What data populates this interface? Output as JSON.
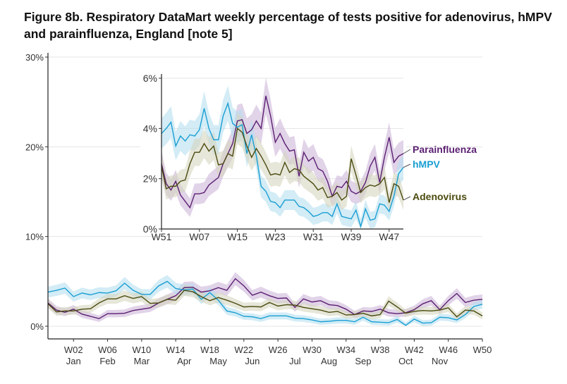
{
  "chart_data": {
    "type": "line",
    "title": "Figure 8b. Respiratory DataMart weekly percentage of tests positive for adenovirus, hMPV and parainfluenza, England [note 5]",
    "xlabel": "",
    "ylabel": "",
    "weeks": [
      "W51",
      "W52",
      "W01",
      "W02",
      "W03",
      "W04",
      "W05",
      "W06",
      "W07",
      "W08",
      "W09",
      "W10",
      "W11",
      "W12",
      "W13",
      "W14",
      "W15",
      "W16",
      "W17",
      "W18",
      "W19",
      "W20",
      "W21",
      "W22",
      "W23",
      "W24",
      "W25",
      "W26",
      "W27",
      "W28",
      "W29",
      "W30",
      "W31",
      "W32",
      "W33",
      "W34",
      "W35",
      "W36",
      "W37",
      "W38",
      "W39",
      "W40",
      "W41",
      "W42",
      "W43",
      "W44",
      "W45",
      "W46",
      "W47",
      "W48",
      "W49",
      "W50"
    ],
    "series": [
      {
        "name": "Parainfluenza",
        "color": "#5b1f72",
        "band_color": "#cdb6d8",
        "values": [
          2.6,
          1.8,
          1.55,
          1.9,
          1.35,
          1.1,
          0.85,
          1.4,
          1.4,
          1.45,
          1.75,
          1.9,
          2.05,
          2.6,
          3.0,
          3.4,
          4.3,
          4.35,
          3.8,
          3.95,
          4.3,
          4.0,
          5.3,
          4.5,
          3.45,
          3.8,
          3.4,
          3.1,
          3.15,
          2.1,
          3.05,
          2.7,
          2.85,
          2.4,
          2.3,
          1.9,
          1.3,
          1.7,
          1.65,
          1.9,
          1.5,
          1.4,
          1.5,
          1.85,
          2.5,
          2.85,
          1.85,
          2.85,
          3.65,
          2.65,
          2.9,
          3.0
        ]
      },
      {
        "name": "hMPV",
        "color": "#1a9fd3",
        "band_color": "#b5dff0",
        "values": [
          3.8,
          4.0,
          4.25,
          3.3,
          3.7,
          3.5,
          3.75,
          3.7,
          3.95,
          4.8,
          4.0,
          3.55,
          3.55,
          4.5,
          5.0,
          4.2,
          4.05,
          4.15,
          3.0,
          3.75,
          2.9,
          1.7,
          1.5,
          1.1,
          1.05,
          0.85,
          1.15,
          1.15,
          1.15,
          0.9,
          0.85,
          0.7,
          0.5,
          0.55,
          0.65,
          0.65,
          0.5,
          1.0,
          0.5,
          0.45,
          0.4,
          0.75,
          0.1,
          0.8,
          0.35,
          0.4,
          1.0,
          0.95,
          0.7,
          1.3,
          2.2,
          2.45
        ]
      },
      {
        "name": "Adenovirus",
        "color": "#4b4b10",
        "band_color": "#d6d6c0",
        "values": [
          2.5,
          1.6,
          1.7,
          1.7,
          1.9,
          1.95,
          2.6,
          3.05,
          3.05,
          3.4,
          3.1,
          3.3,
          2.55,
          2.6,
          3.0,
          2.9,
          4.0,
          3.85,
          3.3,
          2.85,
          3.2,
          2.9,
          2.55,
          2.15,
          2.2,
          2.15,
          2.65,
          2.25,
          2.4,
          2.35,
          2.1,
          1.95,
          1.8,
          1.55,
          1.65,
          1.25,
          1.3,
          1.45,
          1.15,
          1.3,
          2.8,
          2.15,
          1.45,
          1.65,
          1.75,
          1.7,
          1.8,
          2.05,
          1.05,
          1.8,
          1.7,
          1.15
        ]
      }
    ],
    "main": {
      "ylim": [
        0,
        30
      ],
      "yticks": [
        {
          "v": 0,
          "label": "0%"
        },
        {
          "v": 10,
          "label": "10%"
        },
        {
          "v": 20,
          "label": "20%"
        },
        {
          "v": 30,
          "label": "30%"
        }
      ],
      "xticks": [
        "W02",
        "W06",
        "W10",
        "W14",
        "W18",
        "W22",
        "W26",
        "W30",
        "W34",
        "W38",
        "W42",
        "W46",
        "W50"
      ],
      "months": [
        {
          "label": "Jan",
          "week": "W02"
        },
        {
          "label": "Feb",
          "week": "W06"
        },
        {
          "label": "Mar",
          "week": "W10"
        },
        {
          "label": "Apr",
          "week": "W15"
        },
        {
          "label": "May",
          "week": "W19"
        },
        {
          "label": "Jun",
          "week": "W23"
        },
        {
          "label": "Jul",
          "week": "W28"
        },
        {
          "label": "Aug",
          "week": "W32"
        },
        {
          "label": "Sep",
          "week": "W36"
        },
        {
          "label": "Oct",
          "week": "W41"
        },
        {
          "label": "Nov",
          "week": "W45"
        }
      ]
    },
    "inset": {
      "ylim": [
        0,
        6
      ],
      "yticks": [
        {
          "v": 0,
          "label": "0%"
        },
        {
          "v": 2,
          "label": "2%"
        },
        {
          "v": 4,
          "label": "4%"
        },
        {
          "v": 6,
          "label": "6%"
        }
      ],
      "xticks": [
        "W51",
        "W07",
        "W15",
        "W23",
        "W31",
        "W39",
        "W47"
      ]
    }
  }
}
